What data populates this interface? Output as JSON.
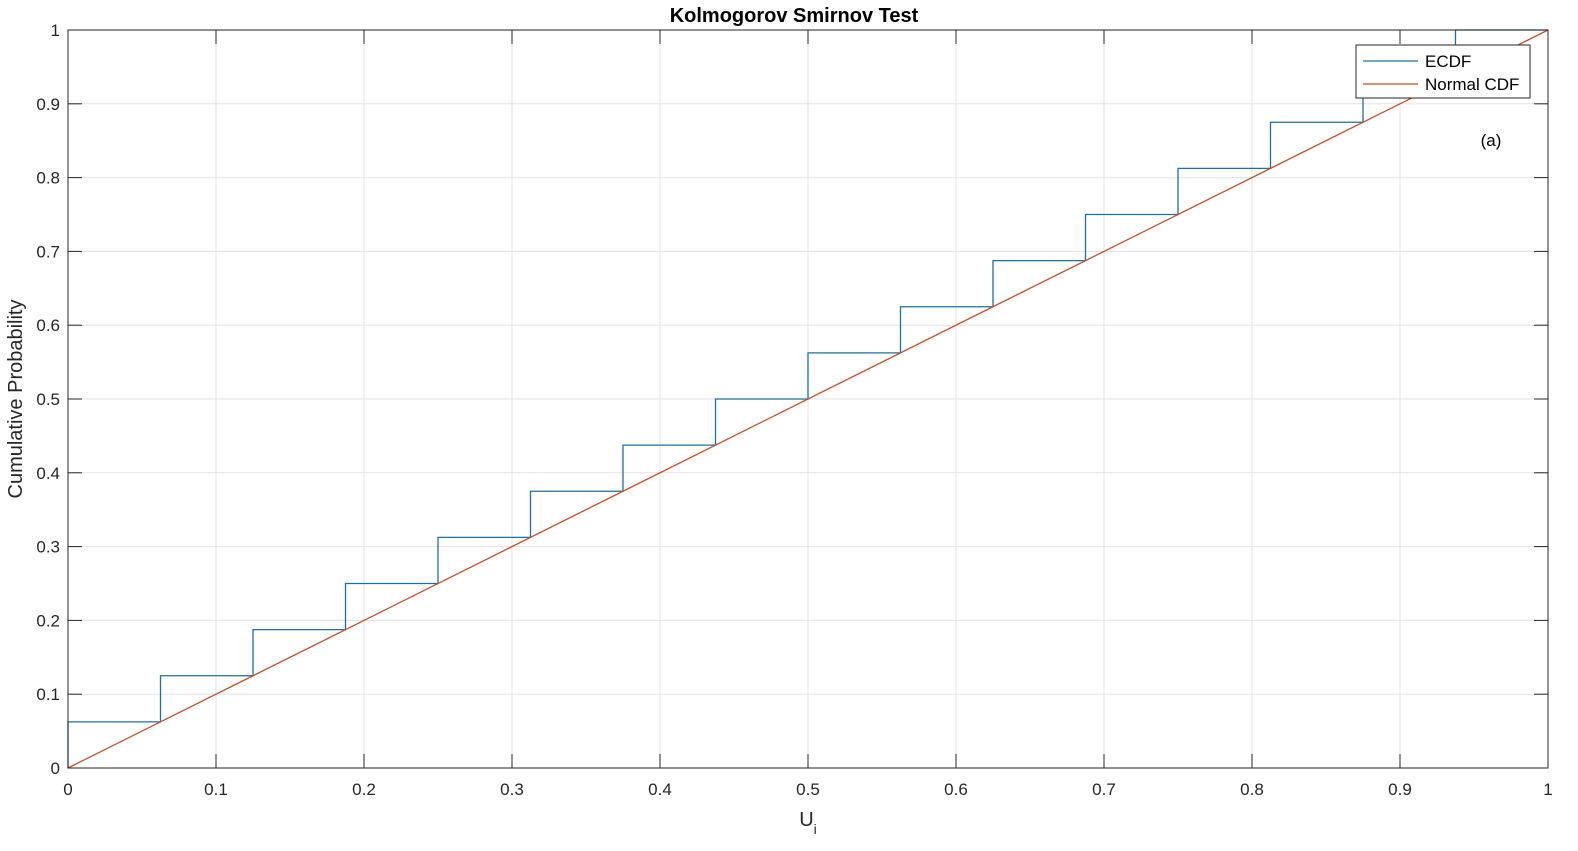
{
  "chart_data": {
    "type": "line",
    "title": "Kolmogorov Smirnov Test",
    "xlabel_main": "U",
    "xlabel_sub": "i",
    "ylabel": "Cumulative Probability",
    "xlim": [
      0,
      1
    ],
    "ylim": [
      0,
      1
    ],
    "xticks": [
      0,
      0.1,
      0.2,
      0.3,
      0.4,
      0.5,
      0.6,
      0.7,
      0.8,
      0.9,
      1
    ],
    "yticks": [
      0,
      0.1,
      0.2,
      0.3,
      0.4,
      0.5,
      0.6,
      0.7,
      0.8,
      0.9,
      1
    ],
    "xtick_labels": [
      "0",
      "0.1",
      "0.2",
      "0.3",
      "0.4",
      "0.5",
      "0.6",
      "0.7",
      "0.8",
      "0.9",
      "1"
    ],
    "ytick_labels": [
      "0",
      "0.1",
      "0.2",
      "0.3",
      "0.4",
      "0.5",
      "0.6",
      "0.7",
      "0.8",
      "0.9",
      "1"
    ],
    "grid": true,
    "legend_position": "top-right",
    "annotation": "(a)",
    "series": [
      {
        "name": "ECDF",
        "kind": "stairs",
        "color": "#1f6fa3",
        "x": [
          0,
          0.0625,
          0.125,
          0.1875,
          0.25,
          0.3125,
          0.375,
          0.4375,
          0.5,
          0.5625,
          0.625,
          0.6875,
          0.75,
          0.8125,
          0.875,
          0.9375
        ],
        "y": [
          0.0625,
          0.125,
          0.1875,
          0.25,
          0.3125,
          0.375,
          0.4375,
          0.5,
          0.5625,
          0.625,
          0.6875,
          0.75,
          0.8125,
          0.875,
          0.9375,
          1
        ]
      },
      {
        "name": "Normal CDF",
        "kind": "line",
        "color": "#c0502a",
        "x": [
          0,
          1
        ],
        "y": [
          0,
          1
        ]
      }
    ]
  }
}
